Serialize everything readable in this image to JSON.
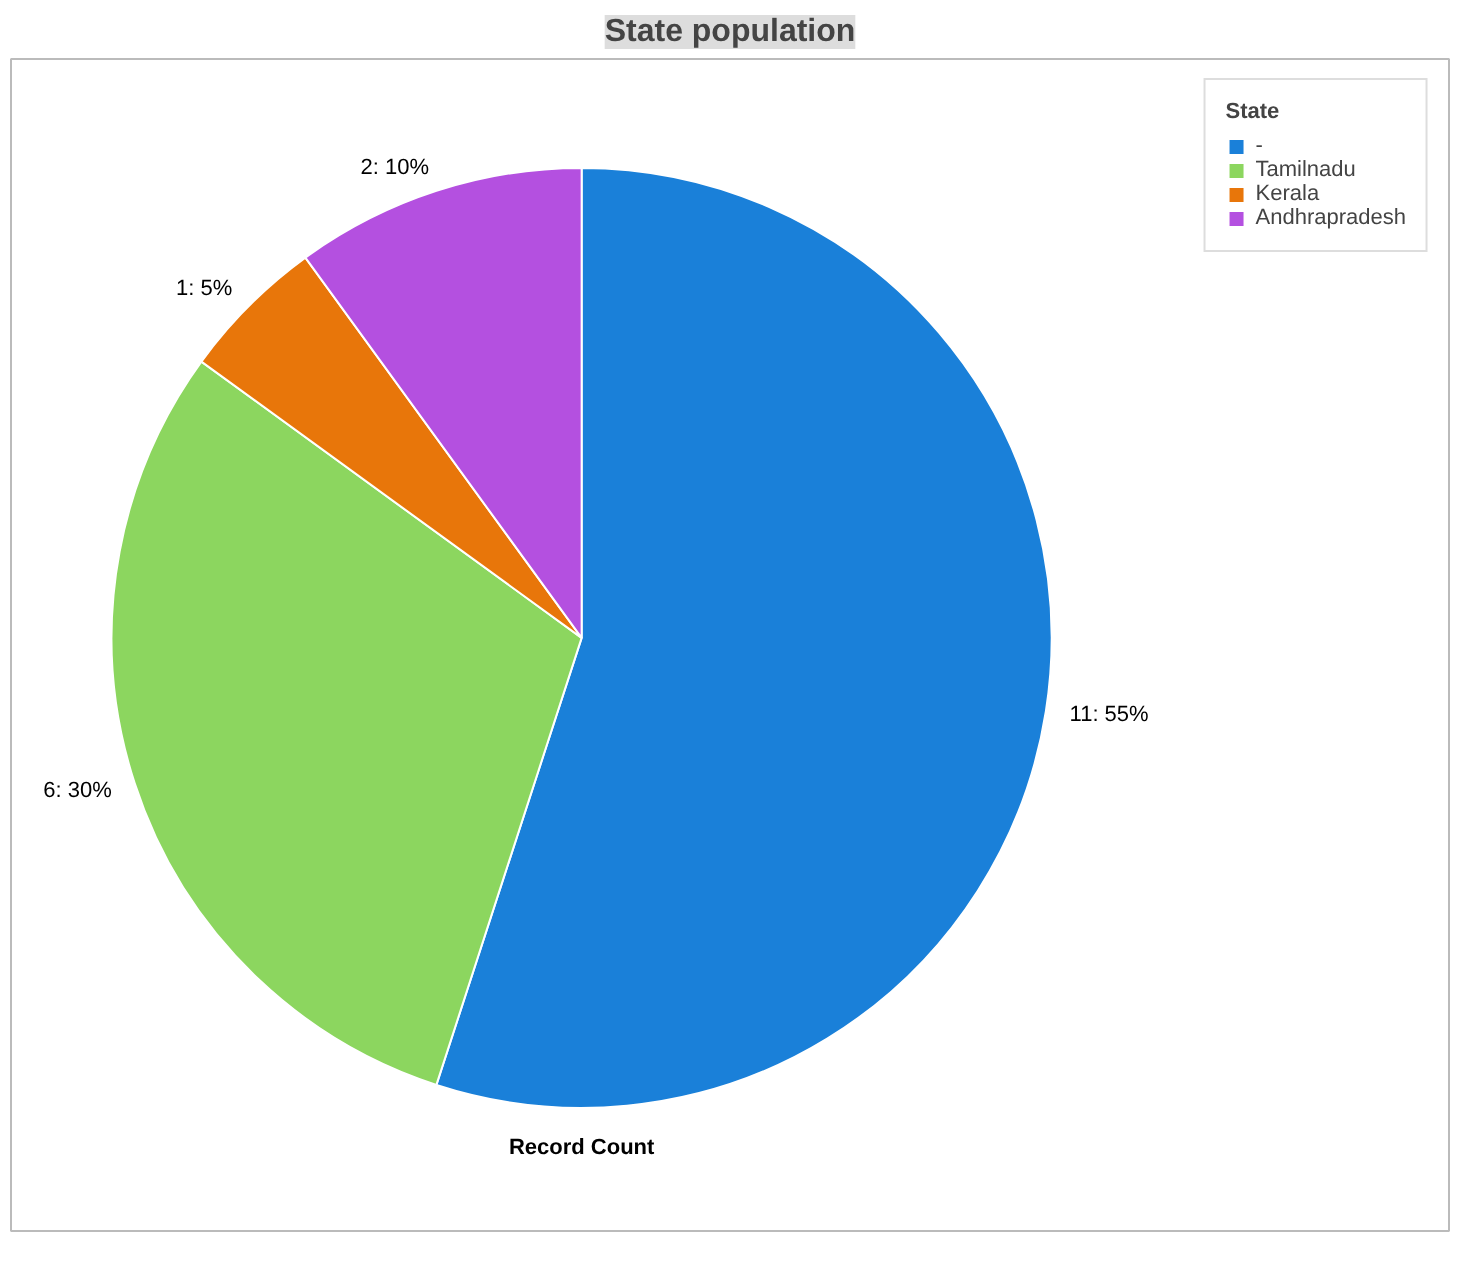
{
  "chart_data": {
    "type": "pie",
    "title": "State population",
    "categories": [
      "-",
      "Tamilnadu",
      "Kerala",
      "Andhrapradesh"
    ],
    "values": [
      11,
      6,
      1,
      2
    ],
    "colors": [
      "#1a80d9",
      "#8cd65f",
      "#e8760a",
      "#b450e0"
    ],
    "value_labels": [
      "11: 55%",
      "6: 30%",
      "1: 5%",
      "2: 10%"
    ],
    "legend_title": "State",
    "legend": "top right",
    "annotations": [
      "Record Count"
    ]
  }
}
